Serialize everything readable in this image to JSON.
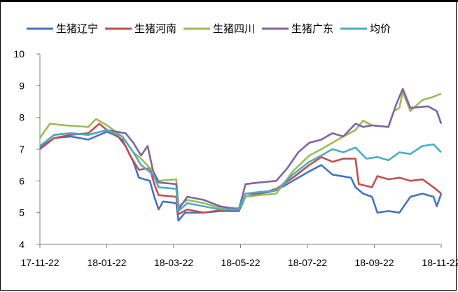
{
  "chart_data": {
    "type": "line",
    "title": "",
    "xlabel": "",
    "ylabel": "",
    "ylim": [
      4,
      10
    ],
    "yticks": [
      "4",
      "5",
      "6",
      "7",
      "8",
      "9",
      "10"
    ],
    "xticks": [
      "17-11-22",
      "18-01-22",
      "18-03-22",
      "18-05-22",
      "18-07-22",
      "18-09-22",
      "18-11-22"
    ],
    "legend_position": "top",
    "grid": false,
    "series": [
      {
        "name": "生猪辽宁",
        "color": "#4472C4",
        "points": [
          [
            "2017-11-22",
            7.05
          ],
          [
            "2017-12-05",
            7.35
          ],
          [
            "2017-12-20",
            7.4
          ],
          [
            "2018-01-05",
            7.3
          ],
          [
            "2018-01-22",
            7.55
          ],
          [
            "2018-02-01",
            7.4
          ],
          [
            "2018-02-08",
            7.1
          ],
          [
            "2018-02-15",
            6.6
          ],
          [
            "2018-02-20",
            6.1
          ],
          [
            "2018-03-02",
            6.0
          ],
          [
            "2018-03-06",
            5.5
          ],
          [
            "2018-03-10",
            5.1
          ],
          [
            "2018-03-14",
            5.35
          ],
          [
            "2018-03-26",
            5.3
          ],
          [
            "2018-03-28",
            4.75
          ],
          [
            "2018-04-03",
            5.0
          ],
          [
            "2018-04-20",
            5.0
          ],
          [
            "2018-05-05",
            5.05
          ],
          [
            "2018-05-22",
            5.05
          ],
          [
            "2018-05-28",
            5.5
          ],
          [
            "2018-06-10",
            5.6
          ],
          [
            "2018-06-25",
            5.7
          ],
          [
            "2018-07-10",
            6.0
          ],
          [
            "2018-07-25",
            6.3
          ],
          [
            "2018-08-05",
            6.5
          ],
          [
            "2018-08-15",
            6.2
          ],
          [
            "2018-09-01",
            6.1
          ],
          [
            "2018-09-05",
            5.8
          ],
          [
            "2018-09-12",
            5.6
          ],
          [
            "2018-09-20",
            5.5
          ],
          [
            "2018-09-25",
            5.0
          ],
          [
            "2018-10-05",
            5.05
          ],
          [
            "2018-10-15",
            5.0
          ],
          [
            "2018-10-25",
            5.5
          ],
          [
            "2018-11-05",
            5.6
          ],
          [
            "2018-11-15",
            5.5
          ],
          [
            "2018-11-18",
            5.2
          ],
          [
            "2018-11-22",
            5.6
          ]
        ]
      },
      {
        "name": "生猪河南",
        "color": "#C0504D",
        "points": [
          [
            "2017-11-22",
            7.0
          ],
          [
            "2017-12-05",
            7.35
          ],
          [
            "2017-12-20",
            7.45
          ],
          [
            "2018-01-05",
            7.5
          ],
          [
            "2018-01-15",
            7.8
          ],
          [
            "2018-01-22",
            7.6
          ],
          [
            "2018-02-05",
            7.3
          ],
          [
            "2018-02-12",
            6.8
          ],
          [
            "2018-02-20",
            6.35
          ],
          [
            "2018-03-02",
            6.4
          ],
          [
            "2018-03-06",
            5.9
          ],
          [
            "2018-03-10",
            5.55
          ],
          [
            "2018-03-26",
            5.5
          ],
          [
            "2018-03-28",
            4.95
          ],
          [
            "2018-04-05",
            5.1
          ],
          [
            "2018-04-20",
            5.0
          ],
          [
            "2018-05-10",
            5.1
          ],
          [
            "2018-05-22",
            5.1
          ],
          [
            "2018-05-28",
            5.6
          ],
          [
            "2018-06-10",
            5.6
          ],
          [
            "2018-06-25",
            5.75
          ],
          [
            "2018-07-10",
            6.1
          ],
          [
            "2018-07-25",
            6.5
          ],
          [
            "2018-08-05",
            6.75
          ],
          [
            "2018-08-15",
            6.6
          ],
          [
            "2018-08-25",
            6.7
          ],
          [
            "2018-09-05",
            6.7
          ],
          [
            "2018-09-08",
            5.9
          ],
          [
            "2018-09-20",
            5.8
          ],
          [
            "2018-09-25",
            6.15
          ],
          [
            "2018-10-05",
            6.05
          ],
          [
            "2018-10-15",
            6.1
          ],
          [
            "2018-10-25",
            6.0
          ],
          [
            "2018-11-05",
            6.05
          ],
          [
            "2018-11-15",
            5.8
          ],
          [
            "2018-11-22",
            5.6
          ]
        ]
      },
      {
        "name": "生猪四川",
        "color": "#9BBB59",
        "points": [
          [
            "2017-11-22",
            7.35
          ],
          [
            "2017-12-01",
            7.8
          ],
          [
            "2017-12-15",
            7.75
          ],
          [
            "2018-01-05",
            7.7
          ],
          [
            "2018-01-12",
            7.95
          ],
          [
            "2018-01-22",
            7.75
          ],
          [
            "2018-02-05",
            7.4
          ],
          [
            "2018-02-15",
            6.9
          ],
          [
            "2018-02-22",
            6.7
          ],
          [
            "2018-03-05",
            6.3
          ],
          [
            "2018-03-10",
            6.0
          ],
          [
            "2018-03-26",
            6.05
          ],
          [
            "2018-03-28",
            5.2
          ],
          [
            "2018-04-05",
            5.4
          ],
          [
            "2018-04-20",
            5.3
          ],
          [
            "2018-05-05",
            5.15
          ],
          [
            "2018-05-22",
            5.15
          ],
          [
            "2018-05-28",
            5.5
          ],
          [
            "2018-06-10",
            5.55
          ],
          [
            "2018-06-25",
            5.6
          ],
          [
            "2018-07-10",
            6.3
          ],
          [
            "2018-07-25",
            6.8
          ],
          [
            "2018-08-05",
            7.0
          ],
          [
            "2018-08-15",
            7.2
          ],
          [
            "2018-08-25",
            7.4
          ],
          [
            "2018-09-05",
            7.6
          ],
          [
            "2018-09-12",
            7.9
          ],
          [
            "2018-09-20",
            7.75
          ],
          [
            "2018-10-05",
            7.7
          ],
          [
            "2018-10-10",
            8.2
          ],
          [
            "2018-10-15",
            8.3
          ],
          [
            "2018-10-18",
            8.8
          ],
          [
            "2018-10-25",
            8.2
          ],
          [
            "2018-11-05",
            8.55
          ],
          [
            "2018-11-15",
            8.65
          ],
          [
            "2018-11-22",
            8.75
          ]
        ]
      },
      {
        "name": "生猪广东",
        "color": "#8064A2",
        "points": [
          [
            "2017-11-22",
            7.1
          ],
          [
            "2017-12-05",
            7.45
          ],
          [
            "2017-12-20",
            7.5
          ],
          [
            "2018-01-05",
            7.45
          ],
          [
            "2018-01-22",
            7.6
          ],
          [
            "2018-02-08",
            7.5
          ],
          [
            "2018-02-15",
            7.2
          ],
          [
            "2018-02-22",
            6.8
          ],
          [
            "2018-02-28",
            7.1
          ],
          [
            "2018-03-05",
            6.3
          ],
          [
            "2018-03-10",
            5.95
          ],
          [
            "2018-03-26",
            5.9
          ],
          [
            "2018-03-28",
            5.1
          ],
          [
            "2018-04-05",
            5.5
          ],
          [
            "2018-04-20",
            5.4
          ],
          [
            "2018-05-05",
            5.2
          ],
          [
            "2018-05-22",
            5.1
          ],
          [
            "2018-05-28",
            5.9
          ],
          [
            "2018-06-10",
            5.95
          ],
          [
            "2018-06-25",
            6.0
          ],
          [
            "2018-07-05",
            6.4
          ],
          [
            "2018-07-15",
            6.9
          ],
          [
            "2018-07-25",
            7.2
          ],
          [
            "2018-08-05",
            7.3
          ],
          [
            "2018-08-15",
            7.5
          ],
          [
            "2018-08-25",
            7.4
          ],
          [
            "2018-09-05",
            7.8
          ],
          [
            "2018-09-12",
            7.7
          ],
          [
            "2018-09-20",
            7.75
          ],
          [
            "2018-10-05",
            7.7
          ],
          [
            "2018-10-12",
            8.4
          ],
          [
            "2018-10-18",
            8.9
          ],
          [
            "2018-10-25",
            8.3
          ],
          [
            "2018-11-10",
            8.35
          ],
          [
            "2018-11-18",
            8.2
          ],
          [
            "2018-11-22",
            7.8
          ]
        ]
      },
      {
        "name": "均价",
        "color": "#4BACC6",
        "points": [
          [
            "2017-11-22",
            7.1
          ],
          [
            "2017-12-05",
            7.45
          ],
          [
            "2017-12-20",
            7.5
          ],
          [
            "2018-01-05",
            7.45
          ],
          [
            "2018-01-22",
            7.6
          ],
          [
            "2018-02-05",
            7.4
          ],
          [
            "2018-02-15",
            6.9
          ],
          [
            "2018-02-22",
            6.5
          ],
          [
            "2018-03-05",
            6.2
          ],
          [
            "2018-03-10",
            5.8
          ],
          [
            "2018-03-26",
            5.75
          ],
          [
            "2018-03-28",
            5.05
          ],
          [
            "2018-04-05",
            5.3
          ],
          [
            "2018-04-20",
            5.2
          ],
          [
            "2018-05-05",
            5.1
          ],
          [
            "2018-05-22",
            5.1
          ],
          [
            "2018-05-28",
            5.6
          ],
          [
            "2018-06-10",
            5.65
          ],
          [
            "2018-06-25",
            5.7
          ],
          [
            "2018-07-10",
            6.2
          ],
          [
            "2018-07-25",
            6.6
          ],
          [
            "2018-08-05",
            6.8
          ],
          [
            "2018-08-15",
            7.0
          ],
          [
            "2018-08-25",
            6.9
          ],
          [
            "2018-09-05",
            7.05
          ],
          [
            "2018-09-15",
            6.7
          ],
          [
            "2018-09-25",
            6.75
          ],
          [
            "2018-10-05",
            6.65
          ],
          [
            "2018-10-15",
            6.9
          ],
          [
            "2018-10-25",
            6.85
          ],
          [
            "2018-11-05",
            7.1
          ],
          [
            "2018-11-15",
            7.15
          ],
          [
            "2018-11-22",
            6.9
          ]
        ]
      }
    ]
  }
}
